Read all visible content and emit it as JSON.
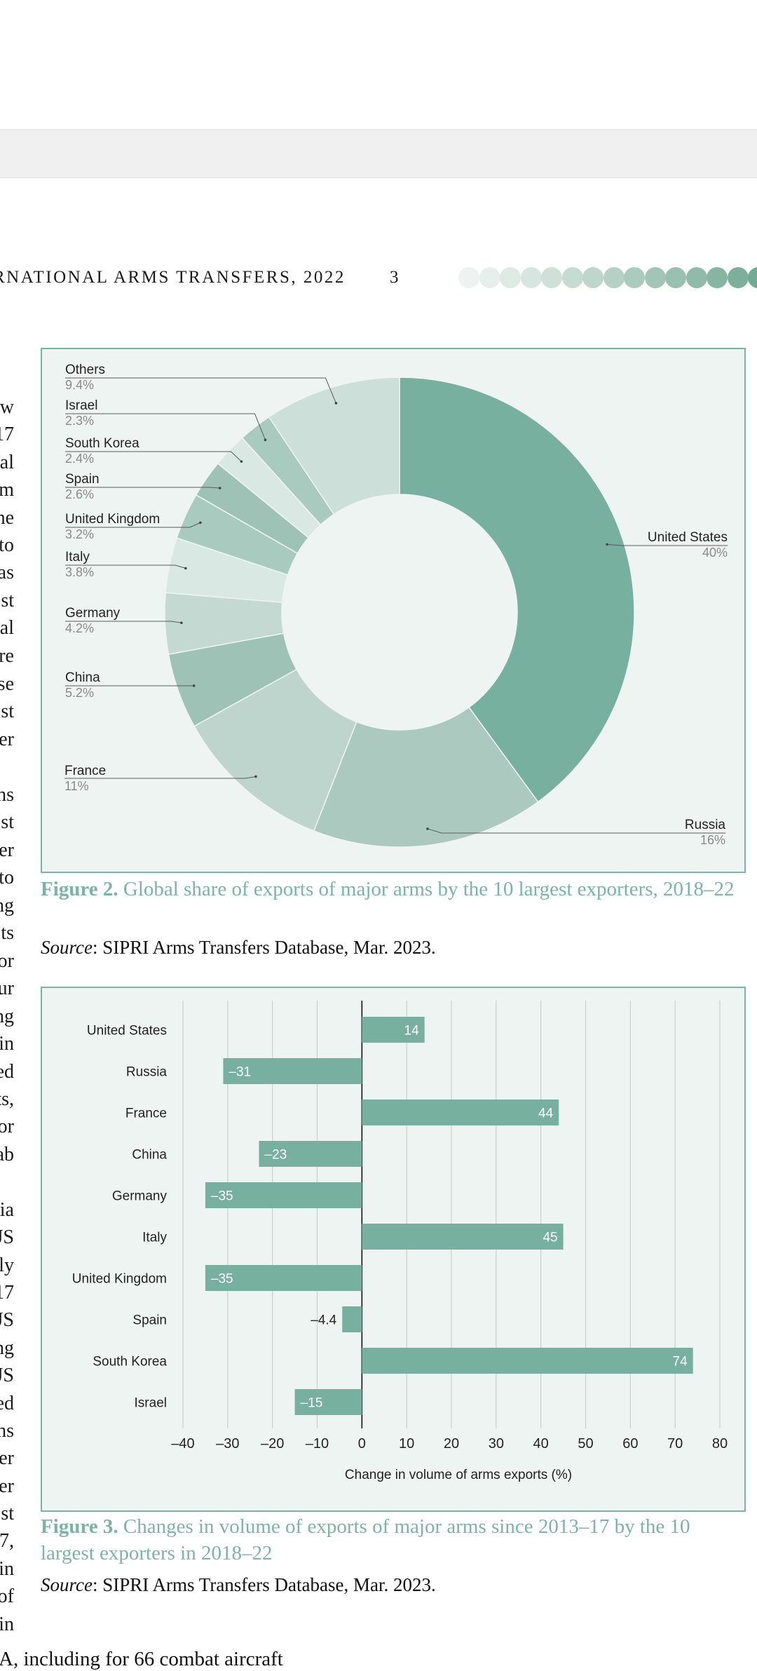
{
  "running_head": "RNATIONAL ARMS TRANSFERS, 2022",
  "page_number": "3",
  "progress_dots_colors": [
    "#eef3f1",
    "#e6efeb",
    "#dfeae5",
    "#d6e5df",
    "#cfe0d9",
    "#c6dbd2",
    "#bed6cc",
    "#b5d0c5",
    "#accbbf",
    "#a3c5b8",
    "#9ac0b1",
    "#90baa9",
    "#86b5a2",
    "#7cb09c",
    "#72ab95"
  ],
  "left_margin_words": [
    "w",
    "17",
    "al",
    "m",
    "he",
    "to",
    "as",
    "st",
    "al",
    "re",
    "se",
    "st",
    "er",
    "ns",
    "st",
    "er",
    "to",
    "ng",
    "ts",
    "or",
    "ur",
    "ng",
    "in",
    "ed",
    "ts,",
    "or",
    "ab",
    "ia",
    "JS",
    "ly",
    "17",
    "JS",
    "ng",
    "JS",
    "ed",
    "ns",
    "er",
    "er",
    "st",
    "17,",
    "in",
    "of",
    "in"
  ],
  "colors": {
    "accent": "#7ab5a3",
    "figure_bg": "#eef4f1",
    "bar": "#78b09f"
  },
  "figure2": {
    "caption_label": "Figure 2.",
    "caption_text": "Global share of exports of major arms by the 10 largest exporters, 2018–22",
    "source_label": "Source",
    "source_text": ": SIPRI Arms Transfers Database, Mar. 2023."
  },
  "figure3": {
    "caption_label": "Figure 3.",
    "caption_text": "Changes in volume of exports of major arms since 2013–17 by the 10 largest exporters in 2018–22",
    "source_label": "Source",
    "source_text": ": SIPRI Arms Transfers Database, Mar. 2023."
  },
  "bottom_text": "A, including for 66 combat aircraft",
  "chart_data": [
    {
      "type": "pie",
      "donut": true,
      "slices": [
        {
          "label": "United States",
          "value_label": "40%",
          "value": 40,
          "color": "#78b09f"
        },
        {
          "label": "Russia",
          "value_label": "16%",
          "value": 16,
          "color": "#acc9bf"
        },
        {
          "label": "France",
          "value_label": "11%",
          "value": 11,
          "color": "#bdd5cc"
        },
        {
          "label": "China",
          "value_label": "5.2%",
          "value": 5.2,
          "color": "#9ec3b6"
        },
        {
          "label": "Germany",
          "value_label": "4.2%",
          "value": 4.2,
          "color": "#c3d9d1"
        },
        {
          "label": "Italy",
          "value_label": "3.8%",
          "value": 3.8,
          "color": "#d9e8e2"
        },
        {
          "label": "United Kingdom",
          "value_label": "3.2%",
          "value": 3.2,
          "color": "#a9cbbf"
        },
        {
          "label": "Spain",
          "value_label": "2.6%",
          "value": 2.6,
          "color": "#9ec3b6"
        },
        {
          "label": "South Korea",
          "value_label": "2.4%",
          "value": 2.4,
          "color": "#d9e8e2"
        },
        {
          "label": "Israel",
          "value_label": "2.3%",
          "value": 2.3,
          "color": "#a9cbbf"
        },
        {
          "label": "Others",
          "value_label": "9.4%",
          "value": 9.4,
          "color": "#ccdfd8"
        }
      ]
    },
    {
      "type": "bar",
      "orientation": "horizontal",
      "categories": [
        "United States",
        "Russia",
        "France",
        "China",
        "Germany",
        "Italy",
        "United Kingdom",
        "Spain",
        "South Korea",
        "Israel"
      ],
      "values": [
        14,
        -31,
        44,
        -23,
        -35,
        45,
        -35,
        -4.4,
        74,
        -15
      ],
      "value_labels": [
        "14",
        "–31",
        "44",
        "–23",
        "–35",
        "45",
        "–35",
        "–4.4",
        "74",
        "–15"
      ],
      "xlim": [
        -40,
        80
      ],
      "xticks": [
        -40,
        -30,
        -20,
        -10,
        0,
        10,
        20,
        30,
        40,
        50,
        60,
        70,
        80
      ],
      "xtick_labels": [
        "–40",
        "–30",
        "–20",
        "–10",
        "0",
        "10",
        "20",
        "30",
        "40",
        "50",
        "60",
        "70",
        "80"
      ],
      "xlabel": "Change in volume of arms exports (%)",
      "grid": true
    }
  ]
}
